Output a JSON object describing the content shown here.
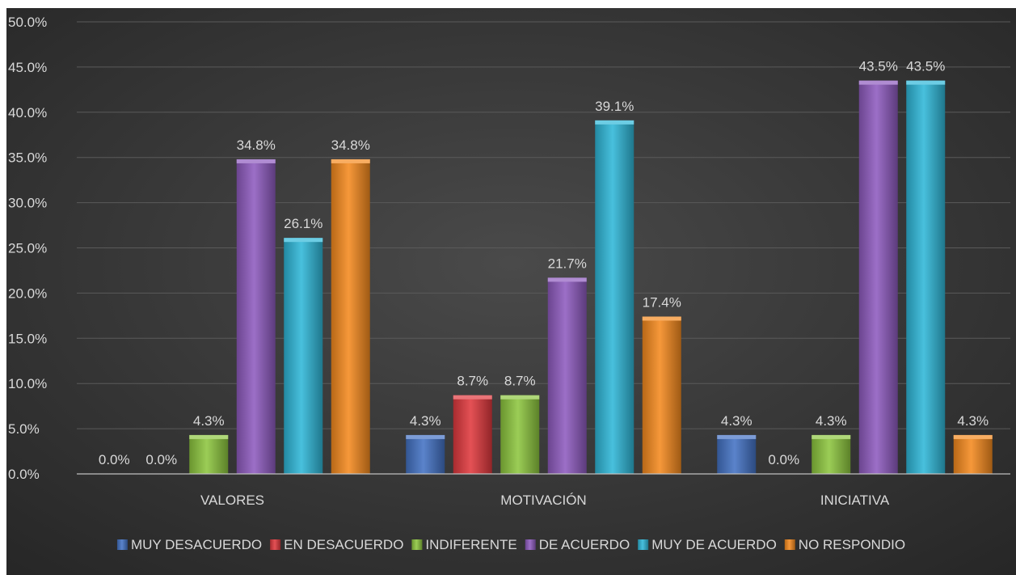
{
  "chart_data": {
    "type": "bar",
    "categories": [
      "VALORES",
      "MOTIVACIÓN",
      "INICIATIVA"
    ],
    "series": [
      {
        "name": "MUY DESACUERDO",
        "color": "#4472c4",
        "values": [
          0.0,
          4.3,
          4.3
        ]
      },
      {
        "name": "EN DESACUERDO",
        "color": "#e0393e",
        "values": [
          0.0,
          8.7,
          0.0
        ]
      },
      {
        "name": "INDIFERENTE",
        "color": "#8dc63f",
        "values": [
          4.3,
          8.7,
          4.3
        ]
      },
      {
        "name": "DE ACUERDO",
        "color": "#8e5bbf",
        "values": [
          34.8,
          21.7,
          43.5
        ]
      },
      {
        "name": "MUY DE ACUERDO",
        "color": "#2fb7d8",
        "values": [
          26.1,
          39.1,
          43.5
        ]
      },
      {
        "name": "NO RESPONDIO",
        "color": "#f58a1f",
        "values": [
          34.8,
          17.4,
          4.3
        ]
      }
    ],
    "y_ticks": [
      "0.0%",
      "5.0%",
      "10.0%",
      "15.0%",
      "20.0%",
      "25.0%",
      "30.0%",
      "35.0%",
      "40.0%",
      "45.0%",
      "50.0%"
    ],
    "ylim": [
      0,
      50
    ],
    "value_suffix": "%",
    "grid": true,
    "legend_position": "bottom",
    "background": "#404040"
  }
}
